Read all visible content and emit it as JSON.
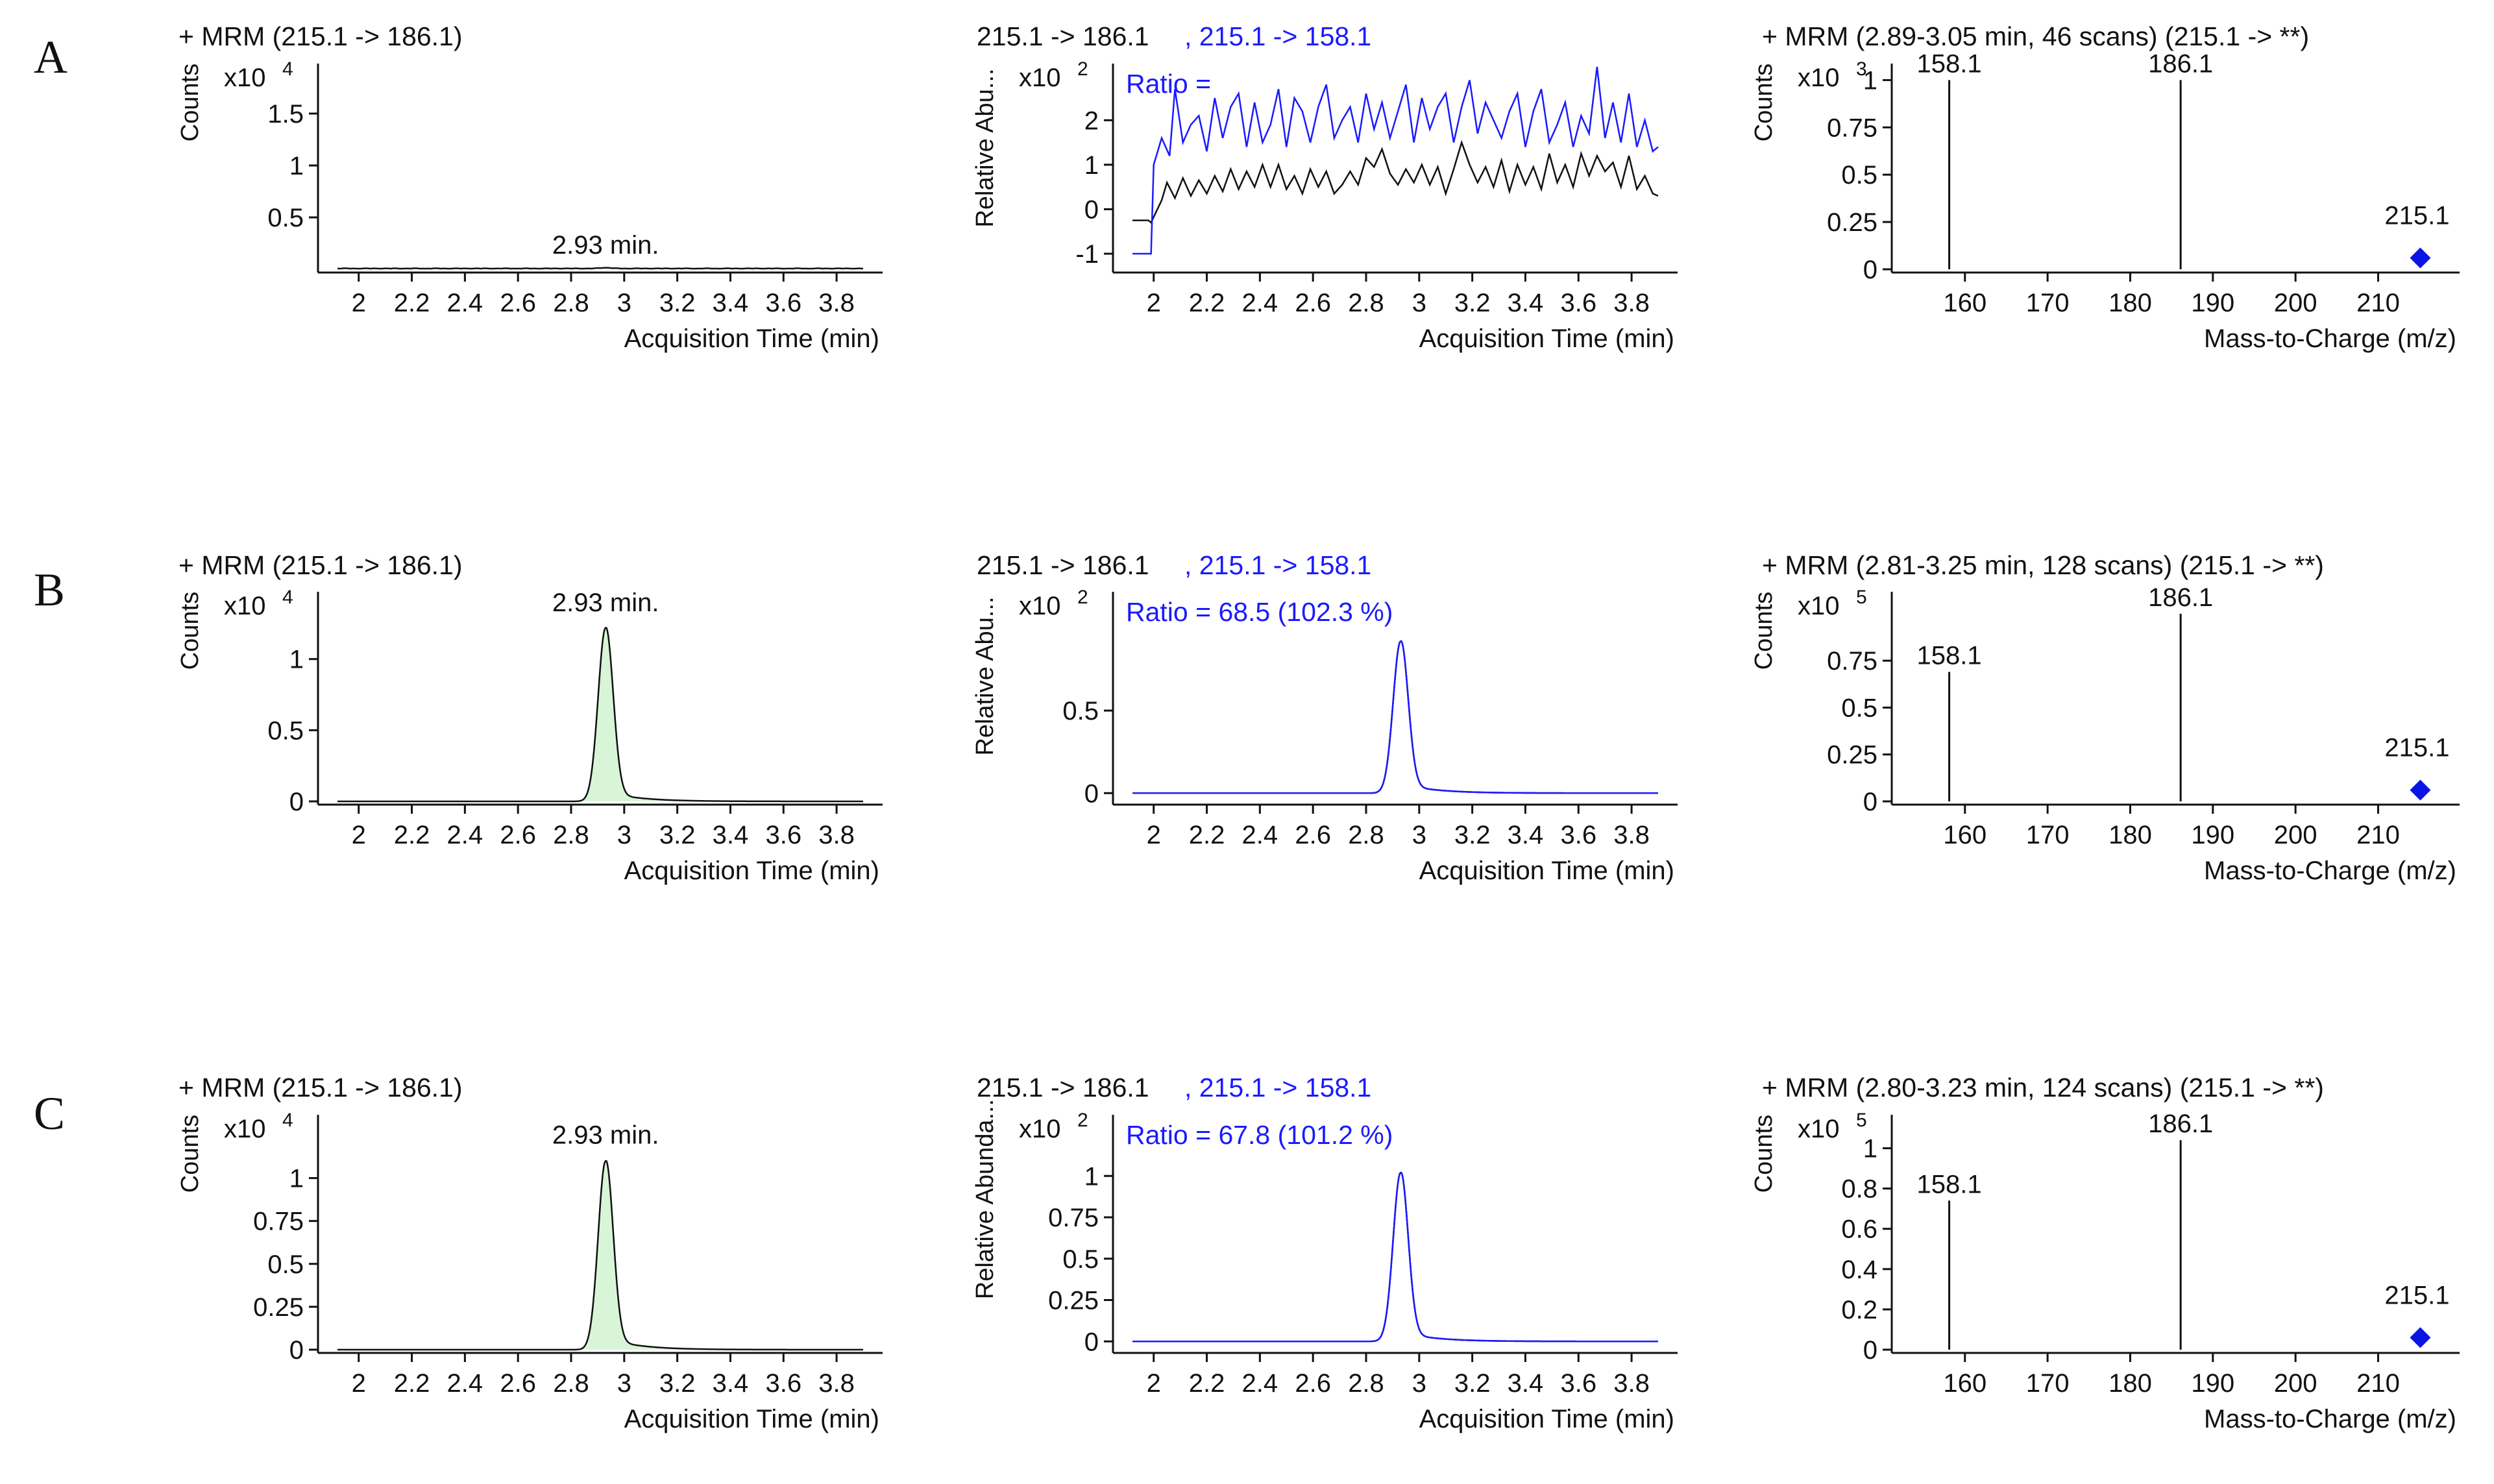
{
  "figure": {
    "row_labels": [
      "A",
      "B",
      "C"
    ],
    "colors": {
      "black": "#111111",
      "blue": "#1a1aff",
      "peak_fill": "#d8f5d8",
      "marker": "#0a14e6"
    }
  },
  "chart_data": [
    {
      "id": "A1",
      "type": "area",
      "row": "A",
      "title": "+ MRM  (215.1  ->  186.1)",
      "ylabel": "Counts",
      "multiplier": "x10",
      "exponent": "4",
      "xlabel": "Acquisition Time (min)",
      "xlim": [
        1.92,
        3.9
      ],
      "ylim": [
        0,
        1.95
      ],
      "xticks": [
        "2",
        "2.2",
        "2.4",
        "2.6",
        "2.8",
        "3",
        "3.2",
        "3.4",
        "3.6",
        "3.8"
      ],
      "yticks": [
        "0.5",
        "1",
        "1.5"
      ],
      "peak": {
        "rt": 2.93,
        "height": 0.008,
        "sigma": 0.02
      },
      "baseline": 0.006,
      "noise": 0.004,
      "annotation": {
        "text": "2.93 min.",
        "x": 2.93,
        "y": 0.1
      }
    },
    {
      "id": "A2",
      "type": "line",
      "row": "A",
      "title": "215.1 -> 186.1",
      "title2": ", 215.1 -> 158.1",
      "ylabel": "Relative Abu...",
      "multiplier": "x10",
      "exponent": "2",
      "xlabel": "Acquisition Time (min)",
      "ratio": "Ratio =",
      "xlim": [
        1.92,
        3.9
      ],
      "ylim": [
        -1.35,
        3.2
      ],
      "xticks": [
        "2",
        "2.2",
        "2.4",
        "2.6",
        "2.8",
        "3",
        "3.2",
        "3.4",
        "3.6",
        "3.8"
      ],
      "yticks": [
        "-1",
        "0",
        "1",
        "2"
      ],
      "series": [
        {
          "name": "215.1 -> 186.1",
          "color": "black",
          "kind": "noise",
          "x": [
            1.92,
            1.98,
            1.99,
            2.03,
            2.05,
            2.08,
            2.11,
            2.14,
            2.17,
            2.2,
            2.23,
            2.26,
            2.29,
            2.32,
            2.35,
            2.38,
            2.41,
            2.44,
            2.47,
            2.5,
            2.53,
            2.56,
            2.59,
            2.62,
            2.65,
            2.68,
            2.71,
            2.74,
            2.77,
            2.8,
            2.83,
            2.86,
            2.89,
            2.92,
            2.95,
            2.98,
            3.01,
            3.04,
            3.07,
            3.1,
            3.13,
            3.16,
            3.19,
            3.22,
            3.25,
            3.28,
            3.31,
            3.34,
            3.37,
            3.4,
            3.43,
            3.46,
            3.49,
            3.52,
            3.55,
            3.58,
            3.61,
            3.64,
            3.67,
            3.7,
            3.73,
            3.76,
            3.79,
            3.82,
            3.85,
            3.88,
            3.9
          ],
          "y": [
            -0.25,
            -0.25,
            -0.3,
            0.2,
            0.6,
            0.25,
            0.7,
            0.3,
            0.65,
            0.35,
            0.75,
            0.4,
            0.9,
            0.45,
            0.85,
            0.5,
            1.0,
            0.5,
            1.0,
            0.45,
            0.75,
            0.35,
            0.9,
            0.5,
            0.85,
            0.35,
            0.55,
            0.85,
            0.55,
            1.15,
            0.95,
            1.35,
            0.8,
            0.55,
            0.9,
            0.6,
            1.0,
            0.55,
            0.95,
            0.35,
            0.9,
            1.5,
            1.0,
            0.6,
            0.95,
            0.5,
            1.1,
            0.4,
            1.0,
            0.55,
            0.95,
            0.45,
            1.25,
            0.6,
            1.0,
            0.5,
            1.25,
            0.75,
            1.2,
            0.85,
            1.05,
            0.5,
            1.2,
            0.45,
            0.75,
            0.35,
            0.3
          ]
        },
        {
          "name": "215.1 -> 158.1",
          "color": "blue",
          "kind": "noise",
          "x": [
            1.92,
            1.99,
            2.0,
            2.03,
            2.06,
            2.08,
            2.11,
            2.14,
            2.17,
            2.2,
            2.23,
            2.26,
            2.29,
            2.32,
            2.35,
            2.38,
            2.41,
            2.44,
            2.47,
            2.5,
            2.53,
            2.56,
            2.59,
            2.62,
            2.65,
            2.68,
            2.71,
            2.74,
            2.77,
            2.8,
            2.83,
            2.86,
            2.89,
            2.92,
            2.95,
            2.98,
            3.01,
            3.04,
            3.07,
            3.1,
            3.13,
            3.16,
            3.19,
            3.22,
            3.25,
            3.28,
            3.31,
            3.34,
            3.37,
            3.4,
            3.43,
            3.46,
            3.49,
            3.52,
            3.55,
            3.58,
            3.61,
            3.64,
            3.67,
            3.7,
            3.73,
            3.76,
            3.79,
            3.82,
            3.85,
            3.88,
            3.9
          ],
          "y": [
            -1.0,
            -1.0,
            1.0,
            1.6,
            1.2,
            2.7,
            1.5,
            1.9,
            2.1,
            1.3,
            2.5,
            1.6,
            2.3,
            2.6,
            1.4,
            2.4,
            1.5,
            1.9,
            2.7,
            1.4,
            2.5,
            2.2,
            1.5,
            2.3,
            2.8,
            1.6,
            2.0,
            2.3,
            1.5,
            2.6,
            1.8,
            2.4,
            1.6,
            2.2,
            2.8,
            1.5,
            2.5,
            1.8,
            2.3,
            2.6,
            1.5,
            2.3,
            2.9,
            1.7,
            2.4,
            2.0,
            1.6,
            2.2,
            2.6,
            1.4,
            2.2,
            2.7,
            1.5,
            1.9,
            2.4,
            1.4,
            2.1,
            1.7,
            3.2,
            1.6,
            2.4,
            1.5,
            2.6,
            1.4,
            2.0,
            1.3,
            1.4
          ]
        }
      ]
    },
    {
      "id": "A3",
      "type": "bar",
      "row": "A",
      "title": "+ MRM (2.89-3.05 min, 46 scans) (215.1 -> **)",
      "ylabel": "Counts",
      "multiplier": "x10",
      "exponent": "3",
      "xlabel": "Mass-to-Charge (m/z)",
      "xlim": [
        153.5,
        217.5
      ],
      "ylim": [
        0,
        1.07
      ],
      "xticks": [
        "160",
        "170",
        "180",
        "190",
        "200",
        "210"
      ],
      "yticks": [
        "0",
        "0.25",
        "0.5",
        "0.75",
        "1"
      ],
      "bars": [
        {
          "mz": 158.1,
          "value": 1.0,
          "label": "158.1"
        },
        {
          "mz": 186.1,
          "value": 1.0,
          "label": "186.1"
        }
      ],
      "precursor": {
        "mz": 215.1,
        "value": 0.06,
        "label": "215.1"
      }
    },
    {
      "id": "B1",
      "type": "area",
      "row": "B",
      "title": "+ MRM  (215.1  ->  186.1)",
      "ylabel": "Counts",
      "multiplier": "x10",
      "exponent": "4",
      "xlabel": "Acquisition Time (min)",
      "xlim": [
        1.92,
        3.9
      ],
      "ylim": [
        0,
        1.45
      ],
      "xticks": [
        "2",
        "2.2",
        "2.4",
        "2.6",
        "2.8",
        "3",
        "3.2",
        "3.4",
        "3.6",
        "3.8"
      ],
      "yticks": [
        "0",
        "0.5",
        "1"
      ],
      "peak": {
        "rt": 2.93,
        "height": 1.22,
        "sigma": 0.028,
        "tail": 0.07,
        "tailw": 0.12
      },
      "baseline": 0.0,
      "noise": 0.0,
      "annotation": {
        "text": "2.93 min.",
        "x": 2.93,
        "y": 1.3
      }
    },
    {
      "id": "B2",
      "type": "line",
      "row": "B",
      "title": "215.1 -> 186.1",
      "title2": ", 215.1 -> 158.1",
      "ylabel": "Relative Abu...",
      "multiplier": "x10",
      "exponent": "2",
      "xlabel": "Acquisition Time (min)",
      "ratio": "Ratio = 68.5 (102.3 %)",
      "xlim": [
        1.92,
        3.9
      ],
      "ylim": [
        -0.05,
        1.2
      ],
      "xticks": [
        "2",
        "2.2",
        "2.4",
        "2.6",
        "2.8",
        "3",
        "3.2",
        "3.4",
        "3.6",
        "3.8"
      ],
      "yticks": [
        "0",
        "0.5"
      ],
      "series": [
        {
          "name": "215.1 -> 186.1",
          "color": "black",
          "kind": "peak",
          "rt": 2.93,
          "height": 0.92,
          "sigma": 0.028,
          "tail": 0.06,
          "tailw": 0.12
        },
        {
          "name": "215.1 -> 158.1",
          "color": "blue",
          "kind": "peak",
          "rt": 2.93,
          "height": 0.92,
          "sigma": 0.028,
          "tail": 0.06,
          "tailw": 0.12
        }
      ]
    },
    {
      "id": "B3",
      "type": "bar",
      "row": "B",
      "title": "+ MRM (2.81-3.25 min, 128 scans) (215.1 -> **)",
      "ylabel": "Counts",
      "multiplier": "x10",
      "exponent": "5",
      "xlabel": "Mass-to-Charge (m/z)",
      "xlim": [
        153.5,
        217.5
      ],
      "ylim": [
        0,
        1.1
      ],
      "xticks": [
        "160",
        "170",
        "180",
        "190",
        "200",
        "210"
      ],
      "yticks": [
        "0",
        "0.25",
        "0.5",
        "0.75"
      ],
      "bars": [
        {
          "mz": 158.1,
          "value": 0.69,
          "label": "158.1"
        },
        {
          "mz": 186.1,
          "value": 1.0,
          "label": "186.1"
        }
      ],
      "precursor": {
        "mz": 215.1,
        "value": 0.06,
        "label": "215.1"
      }
    },
    {
      "id": "C1",
      "type": "area",
      "row": "C",
      "title": "+ MRM  (215.1  ->  186.1)",
      "ylabel": "Counts",
      "multiplier": "x10",
      "exponent": "4",
      "xlabel": "Acquisition Time (min)",
      "xlim": [
        1.92,
        3.9
      ],
      "ylim": [
        0,
        1.35
      ],
      "xticks": [
        "2",
        "2.2",
        "2.4",
        "2.6",
        "2.8",
        "3",
        "3.2",
        "3.4",
        "3.6",
        "3.8"
      ],
      "yticks": [
        "0",
        "0.25",
        "0.5",
        "0.75",
        "1"
      ],
      "peak": {
        "rt": 2.93,
        "height": 1.1,
        "sigma": 0.028,
        "tail": 0.07,
        "tailw": 0.12
      },
      "baseline": 0.0,
      "noise": 0.0,
      "annotation": {
        "text": "2.93 min.",
        "x": 2.93,
        "y": 1.17
      }
    },
    {
      "id": "C2",
      "type": "line",
      "row": "C",
      "title": "215.1 -> 186.1",
      "title2": ", 215.1 -> 158.1",
      "ylabel": "Relative Abunda...",
      "multiplier": "x10",
      "exponent": "2",
      "xlabel": "Acquisition Time (min)",
      "ratio": "Ratio = 67.8 (101.2 %)",
      "xlim": [
        1.92,
        3.9
      ],
      "ylim": [
        -0.05,
        1.35
      ],
      "xticks": [
        "2",
        "2.2",
        "2.4",
        "2.6",
        "2.8",
        "3",
        "3.2",
        "3.4",
        "3.6",
        "3.8"
      ],
      "yticks": [
        "0",
        "0.25",
        "0.5",
        "0.75",
        "1"
      ],
      "series": [
        {
          "name": "215.1 -> 186.1",
          "color": "black",
          "kind": "peak",
          "rt": 2.93,
          "height": 1.02,
          "sigma": 0.028,
          "tail": 0.06,
          "tailw": 0.12
        },
        {
          "name": "215.1 -> 158.1",
          "color": "blue",
          "kind": "peak",
          "rt": 2.93,
          "height": 1.02,
          "sigma": 0.028,
          "tail": 0.06,
          "tailw": 0.12
        }
      ]
    },
    {
      "id": "C3",
      "type": "bar",
      "row": "C",
      "title": "+ MRM (2.80-3.23 min, 124 scans) (215.1 -> **)",
      "ylabel": "Counts",
      "multiplier": "x10",
      "exponent": "5",
      "xlabel": "Mass-to-Charge (m/z)",
      "xlim": [
        153.5,
        217.5
      ],
      "ylim": [
        0,
        1.15
      ],
      "xticks": [
        "160",
        "170",
        "180",
        "190",
        "200",
        "210"
      ],
      "yticks": [
        "0",
        "0.2",
        "0.4",
        "0.6",
        "0.8",
        "1"
      ],
      "bars": [
        {
          "mz": 158.1,
          "value": 0.74,
          "label": "158.1"
        },
        {
          "mz": 186.1,
          "value": 1.04,
          "label": "186.1"
        }
      ],
      "precursor": {
        "mz": 215.1,
        "value": 0.06,
        "label": "215.1"
      }
    }
  ]
}
